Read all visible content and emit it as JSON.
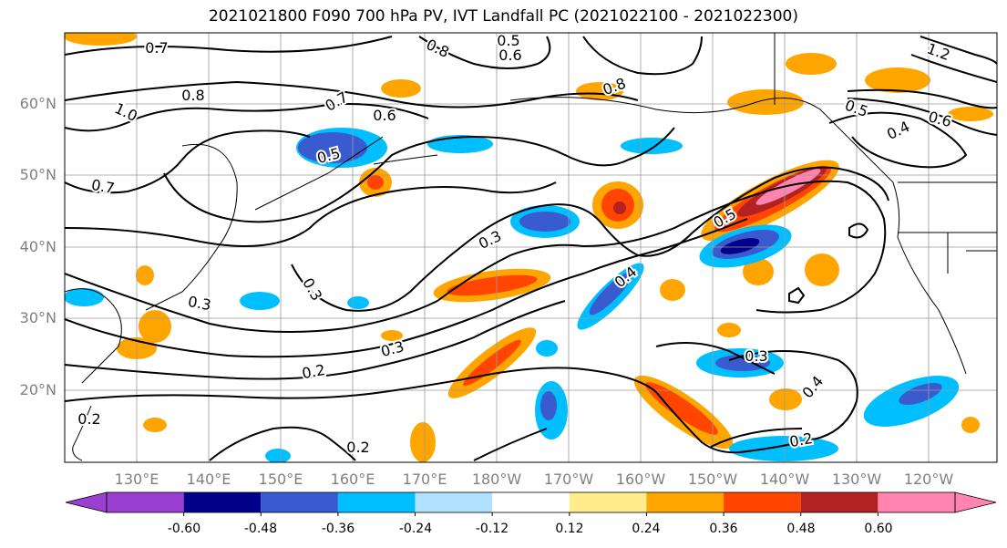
{
  "title": "2021021800 F090 700 hPa PV, IVT Landfall PC (2021022100 - 2021022300)",
  "lat_labels": [
    "60°N",
    "50°N",
    "40°N",
    "30°N",
    "20°N"
  ],
  "lon_labels": [
    "130°E",
    "140°E",
    "150°E",
    "160°E",
    "170°E",
    "180°W",
    "170°W",
    "160°W",
    "150°W",
    "140°W",
    "130°W",
    "120°W"
  ],
  "contour_labels": [
    "0.7",
    "0.8",
    "0.5",
    "0.6",
    "0.8",
    "1.0",
    "0.7",
    "0.6",
    "0.5",
    "0.8",
    "0.5",
    "0.4",
    "0.6",
    "1.2",
    "0.7",
    "0.3",
    "0.5",
    "0.3",
    "0.3",
    "0.4",
    "0.3",
    "0.2",
    "0.3",
    "0.4",
    "0.2",
    "0.2",
    "0.2"
  ],
  "colorbar": {
    "tick_labels": [
      "-0.60",
      "-0.48",
      "-0.36",
      "-0.24",
      "-0.12",
      "0.12",
      "0.24",
      "0.36",
      "0.48",
      "0.60"
    ],
    "colors": [
      "#9b3fd0",
      "#00008b",
      "#3a5bd0",
      "#00bfff",
      "#b0e2ff",
      "#ffffff",
      "#ffec8b",
      "#ffa500",
      "#ff4500",
      "#b22222",
      "#ff85b0"
    ]
  },
  "colors": {
    "land_line": "#000000",
    "grid": "#9a9a9a",
    "tick_text": "#808080"
  }
}
